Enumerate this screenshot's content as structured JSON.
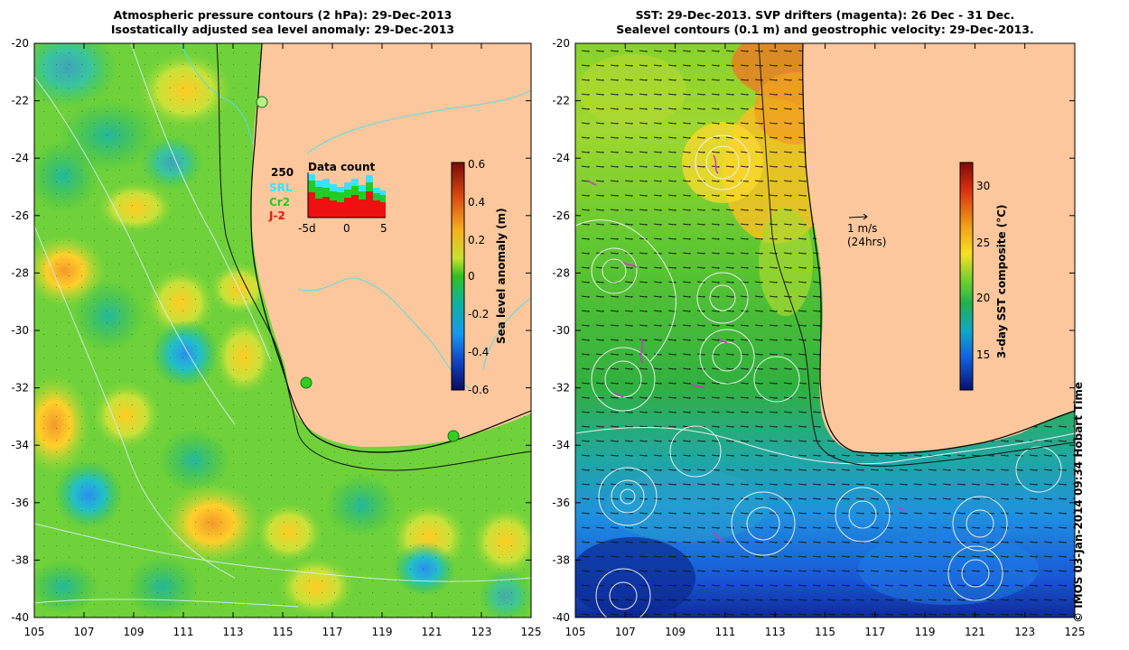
{
  "left_panel": {
    "title_line1": "Atmospheric pressure contours (2 hPa): 29-Dec-2013",
    "title_line2": "Isostatically adjusted sea level anomaly: 29-Dec-2013",
    "colorbar_label": "Sea level anomaly (m)",
    "colorbar_ticks": [
      "0.6",
      "0.4",
      "0.2",
      "0",
      "-0.2",
      "-0.4",
      "-0.6"
    ],
    "inset": {
      "title": "Data count",
      "max_label": "250",
      "legend": [
        {
          "label": "SRL",
          "color": "#33e6ff"
        },
        {
          "label": "Cr2",
          "color": "#22cc22"
        },
        {
          "label": "J-2",
          "color": "#ee1111"
        }
      ],
      "x_ticks": [
        "-5d",
        "0",
        "5"
      ]
    }
  },
  "right_panel": {
    "title_line1": "SST: 29-Dec-2013. SVP drifters (magenta): 26 Dec - 31 Dec.",
    "title_line2": "Sealevel contours (0.1 m) and geostrophic velocity: 29-Dec-2013.",
    "colorbar_label": "3-day SST composite (°C)",
    "colorbar_ticks": [
      "30",
      "25",
      "20",
      "15"
    ],
    "vector_scale": "1 m/s",
    "vector_scale_note": "(24hrs)"
  },
  "axes": {
    "lat_ticks": [
      "-20",
      "-22",
      "-24",
      "-26",
      "-28",
      "-30",
      "-32",
      "-34",
      "-36",
      "-38",
      "-40"
    ],
    "lon_ticks": [
      "105",
      "107",
      "109",
      "111",
      "113",
      "115",
      "117",
      "119",
      "121",
      "123",
      "125"
    ]
  },
  "copyright": "© IMOS 03-Jan-2014 09:34 Hobart Time",
  "colors": {
    "land": "#fcc79c",
    "sla_mid": "#33cc22",
    "sst_warm": "#f0a020",
    "sst_cold": "#1a66dd"
  }
}
